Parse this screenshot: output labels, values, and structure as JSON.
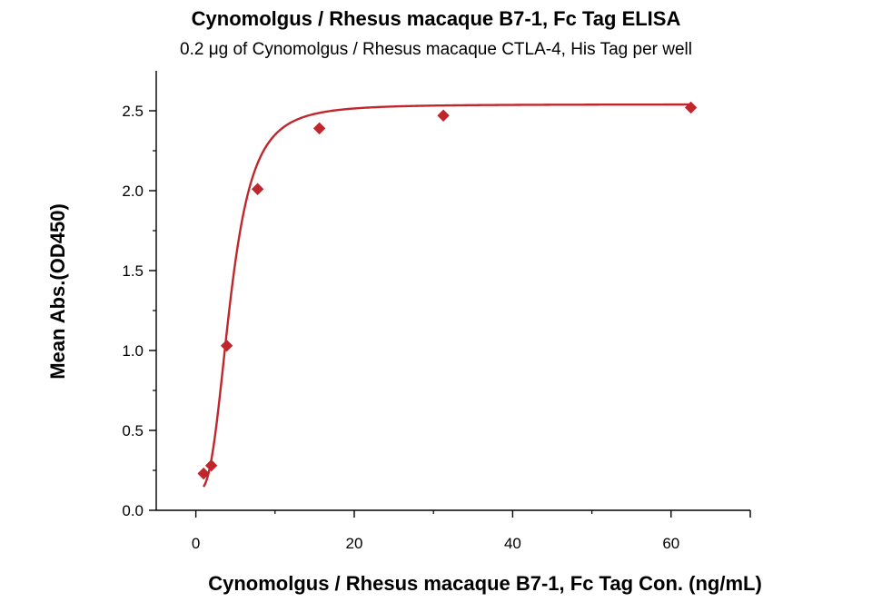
{
  "chart_data": {
    "type": "scatter",
    "title": "Cynomolgus / Rhesus macaque B7-1, Fc Tag ELISA",
    "subtitle": "0.2 μg of Cynomolgus / Rhesus macaque CTLA-4, His Tag per well",
    "xlabel": "Cynomolgus / Rhesus macaque B7-1, Fc Tag Con. (ng/mL)",
    "ylabel": "Mean Abs.(OD450)",
    "xlim": [
      -5,
      70
    ],
    "ylim": [
      0,
      2.75
    ],
    "xticks": [
      0,
      20,
      40,
      60
    ],
    "yticks": [
      0.0,
      0.5,
      1.0,
      1.5,
      2.0,
      2.5
    ],
    "ytick_labels": [
      "0.0",
      "0.5",
      "1.0",
      "1.5",
      "2.0",
      "2.5"
    ],
    "grid": false,
    "series_color": "#c0272d",
    "points": [
      {
        "x": 0.98,
        "y": 0.23
      },
      {
        "x": 1.95,
        "y": 0.28
      },
      {
        "x": 3.9,
        "y": 1.03
      },
      {
        "x": 7.8,
        "y": 2.01
      },
      {
        "x": 15.6,
        "y": 2.39
      },
      {
        "x": 31.25,
        "y": 2.47
      },
      {
        "x": 62.5,
        "y": 2.52
      }
    ],
    "fit_curve": "sigmoidal"
  }
}
